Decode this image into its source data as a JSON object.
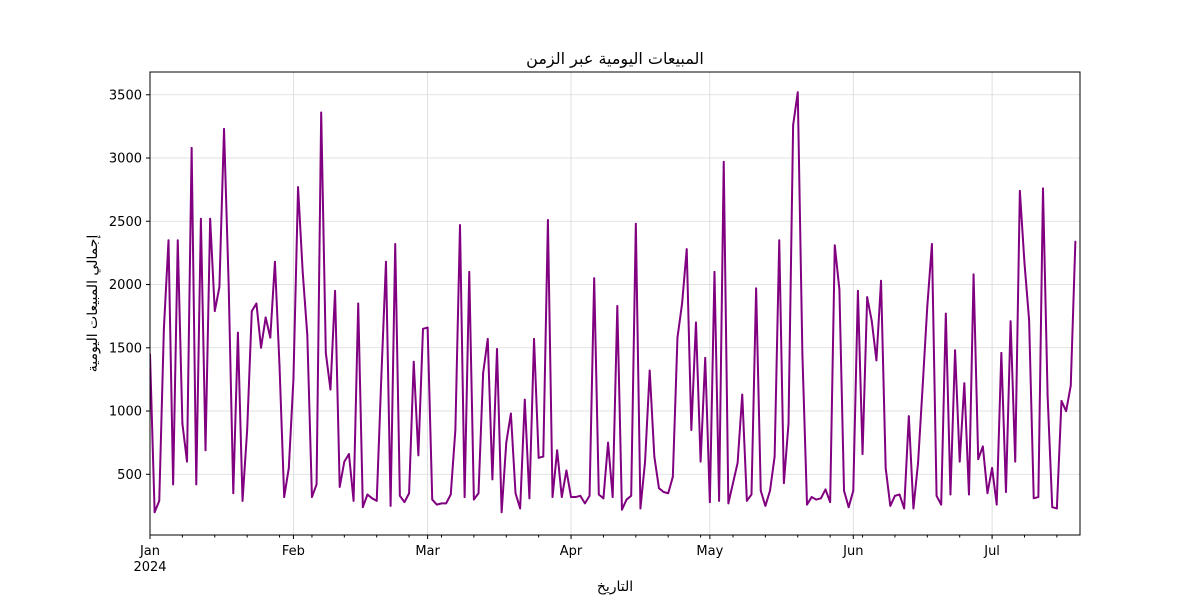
{
  "chart_data": {
    "type": "line",
    "title": "المبيعات اليومية عبر الزمن",
    "xlabel": "التاريخ",
    "ylabel": "إجمالي المبيعات اليومية",
    "x_start": "2024-01-01",
    "x_end": "2024-07-20",
    "xlim": [
      "2024-01-01",
      "2024-07-20"
    ],
    "ylim": [
      20,
      3680
    ],
    "yticks": [
      500,
      1000,
      1500,
      2000,
      2500,
      3000,
      3500
    ],
    "xticks": [
      {
        "date": "2024-01-01",
        "label": "Jan",
        "sublabel": "2024"
      },
      {
        "date": "2024-02-01",
        "label": "Feb",
        "sublabel": ""
      },
      {
        "date": "2024-03-01",
        "label": "Mar",
        "sublabel": ""
      },
      {
        "date": "2024-04-01",
        "label": "Apr",
        "sublabel": ""
      },
      {
        "date": "2024-05-01",
        "label": "May",
        "sublabel": ""
      },
      {
        "date": "2024-06-01",
        "label": "Jun",
        "sublabel": ""
      },
      {
        "date": "2024-07-01",
        "label": "Jul",
        "sublabel": ""
      }
    ],
    "grid": true,
    "line_color": "#800080",
    "series": [
      {
        "name": "",
        "values": [
          1450,
          200,
          290,
          1650,
          2350,
          420,
          2350,
          900,
          600,
          3080,
          420,
          2520,
          690,
          2520,
          1790,
          1980,
          3230,
          2000,
          350,
          1620,
          290,
          850,
          1790,
          1850,
          1500,
          1740,
          1580,
          2180,
          1350,
          320,
          550,
          1250,
          2770,
          2100,
          1600,
          320,
          420,
          3360,
          1460,
          1170,
          1950,
          400,
          600,
          660,
          290,
          1850,
          240,
          340,
          310,
          290,
          1270,
          2180,
          250,
          2320,
          330,
          280,
          350,
          1390,
          650,
          1650,
          1660,
          300,
          260,
          270,
          270,
          340,
          850,
          2470,
          320,
          2100,
          300,
          350,
          1300,
          1570,
          460,
          1490,
          200,
          750,
          980,
          350,
          230,
          1090,
          310,
          1570,
          630,
          640,
          2510,
          320,
          690,
          320,
          530,
          320,
          320,
          330,
          270,
          330,
          2050,
          340,
          310,
          750,
          320,
          1830,
          220,
          300,
          330,
          2480,
          230,
          600,
          1320,
          640,
          390,
          360,
          350,
          480,
          1580,
          1850,
          2280,
          850,
          1700,
          600,
          1420,
          280,
          2100,
          290,
          2970,
          270,
          430,
          590,
          1130,
          290,
          340,
          1970,
          370,
          250,
          370,
          640,
          2350,
          430,
          900,
          3260,
          3520,
          1450,
          260,
          320,
          300,
          310,
          380,
          280,
          2310,
          1960,
          370,
          240,
          370,
          1950,
          660,
          1900,
          1710,
          1400,
          2030,
          550,
          250,
          330,
          340,
          230,
          960,
          230,
          590,
          1200,
          1830,
          2320,
          330,
          260,
          1770,
          340,
          1480,
          600,
          1220,
          340,
          2080,
          620,
          720,
          350,
          550,
          260,
          1460,
          360,
          1710,
          600,
          2740,
          2170,
          1720,
          310,
          320,
          2760,
          1120,
          240,
          230,
          1080,
          1000,
          1200,
          2340
        ]
      }
    ]
  }
}
